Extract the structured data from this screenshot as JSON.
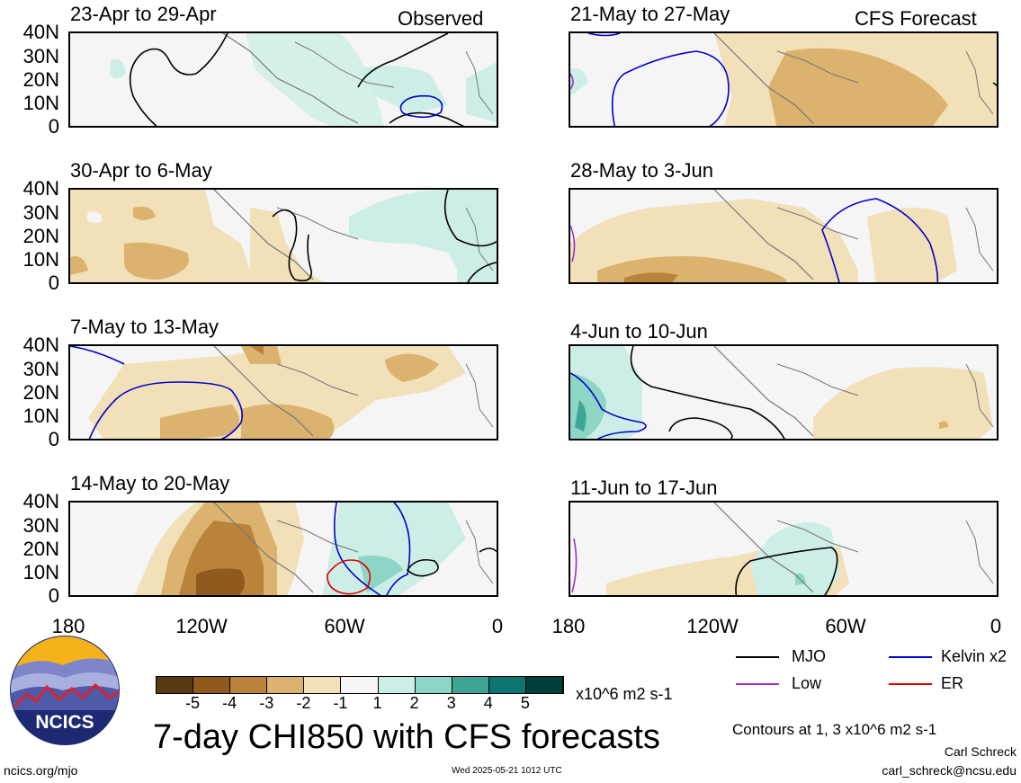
{
  "header": {
    "left_tag": "Observed",
    "right_tag": "CFS Forecast"
  },
  "panels": {
    "obs": [
      {
        "title": "23-Apr to 29-Apr"
      },
      {
        "title": "30-Apr to 6-May"
      },
      {
        "title": "7-May to 13-May"
      },
      {
        "title": "14-May to 20-May"
      }
    ],
    "fcst": [
      {
        "title": "21-May to 27-May"
      },
      {
        "title": "28-May to 3-Jun"
      },
      {
        "title": "4-Jun to 10-Jun"
      },
      {
        "title": "11-Jun to 17-Jun"
      }
    ]
  },
  "lat_labels": [
    "40N",
    "30N",
    "20N",
    "10N",
    "0"
  ],
  "lon_labels": [
    "180",
    "120W",
    "60W",
    "0"
  ],
  "colorbar": {
    "unit_label": "x10^6 m2 s-1",
    "tick_labels": [
      "-5",
      "-4",
      "-3",
      "-2",
      "-1",
      "1",
      "2",
      "3",
      "4",
      "5"
    ],
    "colors": [
      "#5a3a12",
      "#8f5a1c",
      "#b9833c",
      "#dbb36f",
      "#f1e0b8",
      "#f5f5f5",
      "#cdeee6",
      "#8dd6c5",
      "#3fa696",
      "#0d7571",
      "#00403a"
    ]
  },
  "legend": {
    "items": [
      {
        "label": "MJO",
        "color": "#000000"
      },
      {
        "label": "Kelvin x2",
        "color": "#0000cc"
      },
      {
        "label": "Low",
        "color": "#9933cc"
      },
      {
        "label": "ER",
        "color": "#dd0000"
      }
    ],
    "contours_note": "Contours at 1, 3 x10^6 m2 s-1"
  },
  "main_title": "7-day CHI850 with CFS forecasts",
  "logo_text": "NCICS",
  "footer": {
    "url": "ncics.org/mjo",
    "timestamp": "Wed 2025-05-21 1012 UTC",
    "author": "Carl Schreck",
    "email": "carl_schreck@ncsu.edu"
  }
}
